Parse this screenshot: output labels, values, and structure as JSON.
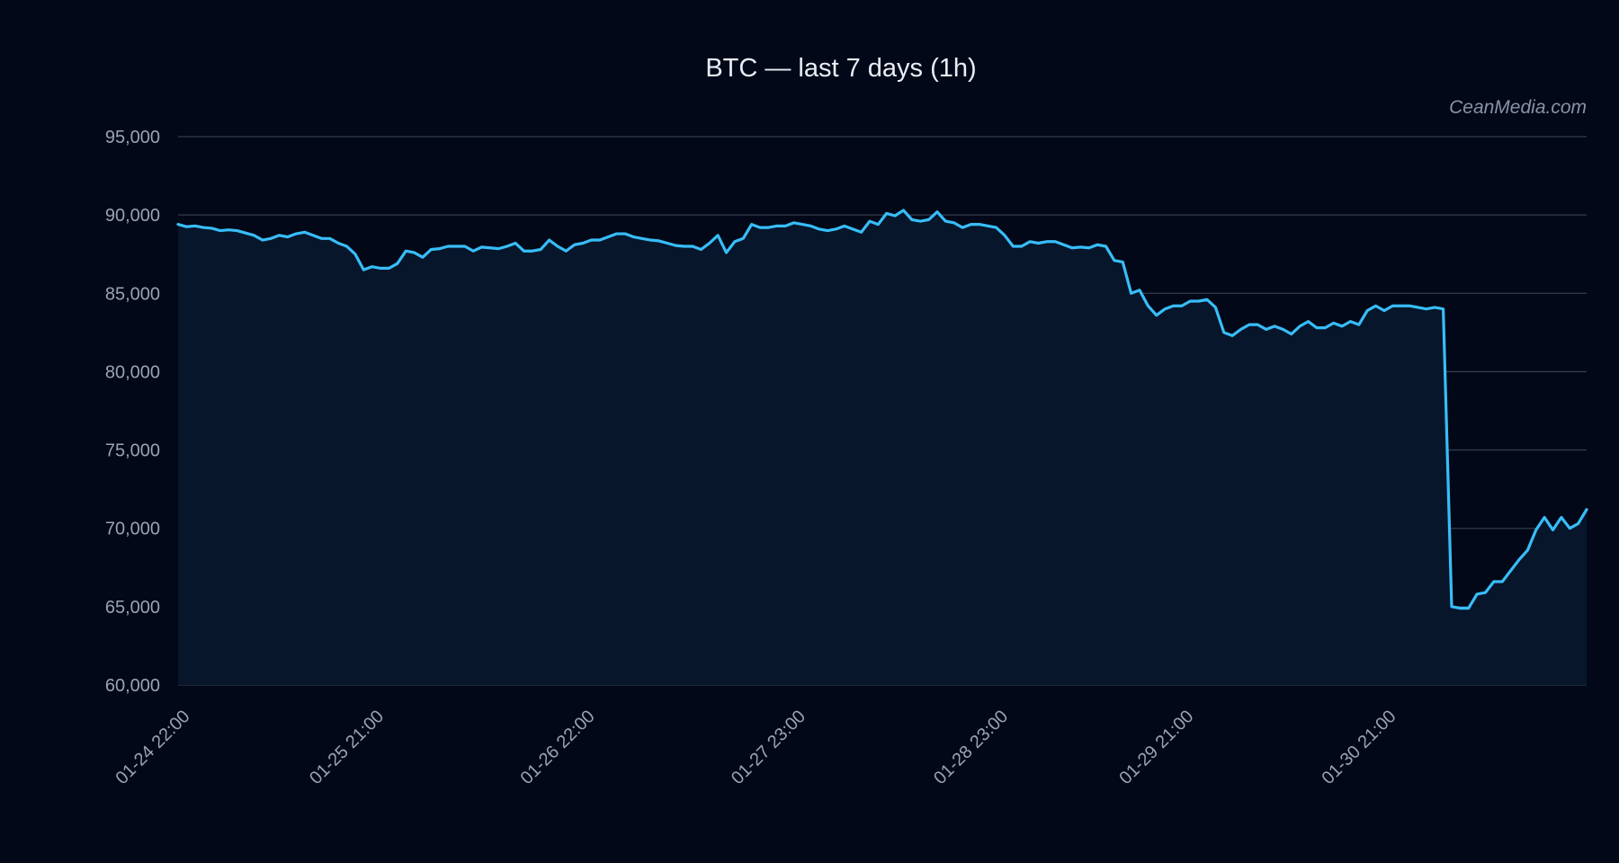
{
  "chart_data": {
    "type": "area",
    "title": "BTC — last 7 days (1h)",
    "watermark": "CeanMedia.com",
    "xlabel": "",
    "ylabel": "",
    "ylim": [
      60000,
      95000
    ],
    "yticks": [
      95000,
      90000,
      85000,
      80000,
      75000,
      70000,
      65000,
      60000
    ],
    "ytick_labels": [
      "95,000",
      "90,000",
      "85,000",
      "80,000",
      "75,000",
      "70,000",
      "65,000",
      "60,000"
    ],
    "xticks": [
      {
        "label": "01-24 22:00",
        "index": 0
      },
      {
        "label": "01-25 21:00",
        "index": 23
      },
      {
        "label": "01-26 22:00",
        "index": 48
      },
      {
        "label": "01-27 23:00",
        "index": 73
      },
      {
        "label": "01-28 23:00",
        "index": 97
      },
      {
        "label": "01-29 21:00",
        "index": 119
      },
      {
        "label": "01-30 21:00",
        "index": 143
      }
    ],
    "grid": true,
    "line_color": "#38bdf8",
    "fill_color": "#07162a",
    "series": [
      {
        "values": [
          89400,
          89250,
          89300,
          89200,
          89150,
          89000,
          89050,
          89000,
          88850,
          88700,
          88400,
          88500,
          88700,
          88600,
          88800,
          88900,
          88700,
          88500,
          88500,
          88200,
          88000,
          87500,
          86500,
          86700,
          86600,
          86600,
          86900,
          87700,
          87600,
          87300,
          87800,
          87850,
          88000,
          88000,
          88000,
          87700,
          87950,
          87900,
          87850,
          88000,
          88200,
          87700,
          87700,
          87800,
          88400,
          88000,
          87700,
          88100,
          88200,
          88400,
          88400,
          88600,
          88800,
          88800,
          88600,
          88500,
          88400,
          88350,
          88200,
          88050,
          88000,
          88000,
          87800,
          88200,
          88700,
          87600,
          88300,
          88500,
          89400,
          89200,
          89200,
          89300,
          89300,
          89500,
          89400,
          89300,
          89100,
          89000,
          89100,
          89300,
          89100,
          88900,
          89600,
          89400,
          90100,
          89950,
          90300,
          89700,
          89600,
          89700,
          90200,
          89600,
          89500,
          89200,
          89400,
          89400,
          89300,
          89200,
          88700,
          88000,
          88000,
          88300,
          88200,
          88300,
          88300,
          88100,
          87900,
          87950,
          87900,
          88100,
          88000,
          87100,
          87000,
          85000,
          85200,
          84200,
          83600,
          84000,
          84200,
          84200,
          84500,
          84500,
          84600,
          84100,
          82500,
          82300,
          82700,
          83000,
          83000,
          82700,
          82900,
          82700,
          82400,
          82900,
          83200,
          82800,
          82800,
          83100,
          82900,
          83200,
          83000,
          83900,
          84200,
          83900,
          84200,
          84200,
          84200,
          84100,
          84000,
          84100,
          84000,
          65000,
          64900,
          64900,
          65800,
          65900,
          66600,
          66600,
          67300,
          68000,
          68600,
          69900,
          70700,
          69900,
          70700,
          70000,
          70300,
          71200
        ]
      }
    ]
  }
}
